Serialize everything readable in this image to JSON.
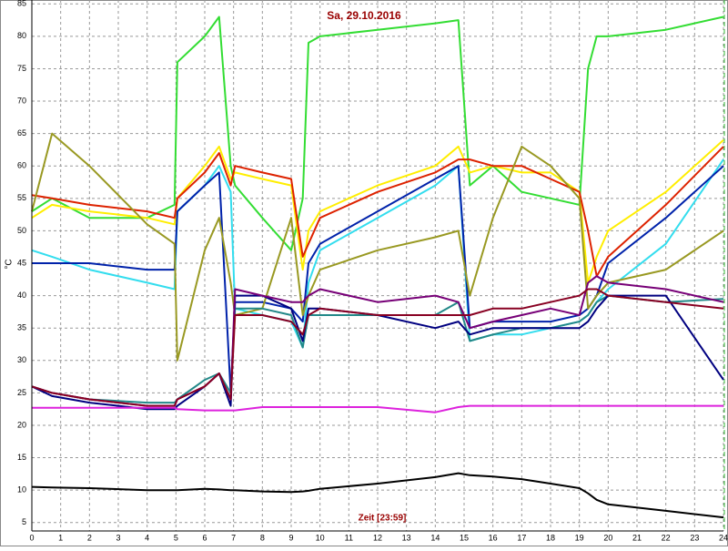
{
  "chart_data": {
    "type": "line",
    "title": "Sa, 29.10.2016",
    "x_label": "Zeit [23:59]",
    "y_label": "°C",
    "x": [
      0,
      0.7,
      2,
      4,
      4.95,
      5.05,
      6,
      6.5,
      6.9,
      7.05,
      8,
      9,
      9.4,
      9.6,
      10,
      12,
      14,
      14.8,
      15.2,
      16,
      17,
      18,
      19,
      19.3,
      19.6,
      20,
      22,
      24
    ],
    "series": [
      {
        "color": "#33dd33",
        "values": [
          53,
          55,
          52,
          52,
          54,
          76,
          80,
          83,
          60,
          57,
          52,
          47,
          55,
          79,
          80,
          81,
          82,
          82.5,
          57,
          60,
          56,
          55,
          54,
          75,
          80,
          80,
          81,
          83
        ]
      },
      {
        "color": "#ffee00",
        "values": [
          52,
          54,
          53,
          52,
          51,
          55,
          60,
          63,
          58,
          59,
          58,
          57,
          44,
          50,
          53,
          57,
          60,
          63,
          59,
          60,
          59,
          59,
          56,
          42,
          46,
          50,
          56,
          64
        ]
      },
      {
        "color": "#dd2200",
        "values": [
          55.5,
          55,
          54,
          53,
          52,
          55,
          59,
          62,
          57,
          60,
          59,
          58,
          46,
          48,
          52,
          56,
          59,
          61,
          61,
          60,
          60,
          58,
          56,
          50,
          43,
          46,
          54,
          63
        ]
      },
      {
        "color": "#33ddee",
        "values": [
          47,
          46,
          44,
          42,
          41,
          53,
          57,
          60,
          56,
          38,
          37,
          36,
          32,
          42,
          47,
          52,
          57,
          60,
          33,
          34,
          34,
          35,
          36,
          37,
          39,
          41,
          48,
          61
        ]
      },
      {
        "color": "#0022aa",
        "values": [
          45,
          45,
          45,
          44,
          44,
          53,
          57,
          59,
          25,
          39,
          39,
          38,
          36,
          45,
          48,
          53,
          58,
          60,
          35,
          36,
          36,
          36,
          37,
          38,
          40,
          45,
          52,
          60
        ]
      },
      {
        "color": "#999922",
        "values": [
          53,
          65,
          60,
          51,
          48,
          30,
          47,
          52,
          42,
          37,
          38,
          52,
          37,
          40,
          44,
          47,
          49,
          50,
          40,
          52,
          63,
          60,
          55,
          38,
          40,
          42,
          44,
          50
        ]
      },
      {
        "color": "#228888",
        "values": [
          26,
          25,
          24,
          23.5,
          23.5,
          24,
          27,
          28,
          25,
          38,
          38,
          37,
          32,
          37,
          37,
          37,
          37,
          39,
          33,
          34,
          35,
          35,
          36,
          37,
          39,
          40,
          39,
          39.5
        ]
      },
      {
        "color": "#000080",
        "values": [
          26,
          24.5,
          23.5,
          22.5,
          22.5,
          23,
          26,
          28,
          23,
          40,
          40,
          38,
          33,
          38,
          38,
          37,
          35,
          36,
          34,
          35,
          35,
          35,
          35,
          36,
          38,
          40,
          40,
          27
        ]
      },
      {
        "color": "#770077",
        "values": [
          26,
          25,
          24,
          23,
          23,
          24,
          26,
          28,
          24,
          41,
          40,
          39,
          39,
          40,
          41,
          39,
          40,
          39,
          35,
          36,
          37,
          38,
          37,
          42,
          43,
          42,
          41,
          39
        ]
      },
      {
        "color": "#880022",
        "values": [
          26,
          25,
          24,
          23,
          23,
          24,
          26,
          28,
          24,
          37,
          37,
          36,
          34,
          37,
          38,
          37,
          37,
          37,
          37,
          38,
          38,
          39,
          40,
          41,
          41,
          40,
          39,
          38
        ]
      },
      {
        "color": "#dd22dd",
        "values": [
          22.7,
          22.7,
          22.7,
          22.7,
          22.7,
          22.5,
          22.3,
          22.3,
          22.3,
          22.3,
          22.8,
          22.8,
          22.8,
          22.8,
          22.8,
          22.8,
          22,
          22.8,
          23,
          23,
          23,
          23,
          23,
          23,
          23,
          23,
          23,
          23
        ]
      },
      {
        "color": "#000000",
        "values": [
          10.5,
          10.4,
          10.3,
          10,
          10,
          10,
          10.2,
          10.1,
          10,
          10,
          9.8,
          9.7,
          9.8,
          9.9,
          10.2,
          11,
          12,
          12.6,
          12.3,
          12.1,
          11.7,
          11,
          10.3,
          9.5,
          8.5,
          7.8,
          6.8,
          5.8
        ]
      }
    ],
    "xlim": [
      0,
      24
    ],
    "ylim": [
      3.7,
      85.6
    ],
    "xticks": [
      0,
      1,
      2,
      3,
      4,
      5,
      6,
      7,
      8,
      9,
      10,
      11,
      12,
      13,
      14,
      15,
      16,
      17,
      18,
      19,
      20,
      21,
      22,
      23,
      24
    ],
    "yticks": [
      5,
      10,
      15,
      20,
      25,
      30,
      35,
      40,
      45,
      50,
      55,
      60,
      65,
      70,
      75,
      80,
      85
    ],
    "grid": true
  }
}
